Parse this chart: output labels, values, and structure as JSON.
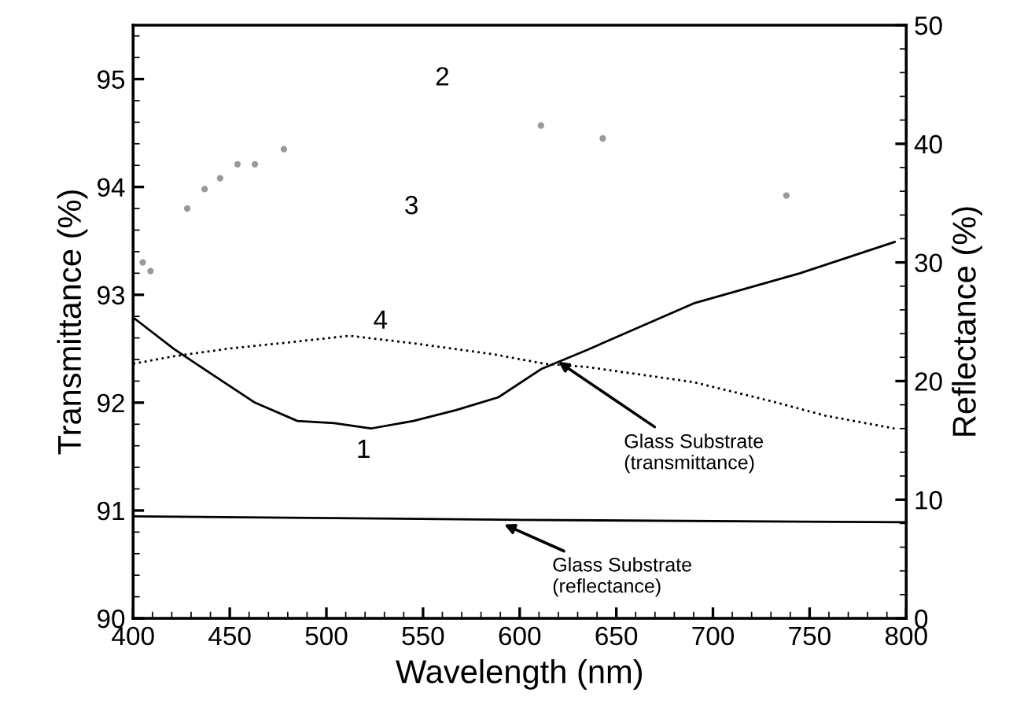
{
  "chart_data": {
    "type": "line",
    "xlabel": "Wavelength (nm)",
    "ylabel": "Transmittance (%)",
    "y2label": "Reflectance (%)",
    "xlim": [
      400,
      800
    ],
    "xticks": [
      400,
      450,
      500,
      550,
      600,
      650,
      700,
      750,
      800
    ],
    "ylim": [
      90,
      95.5
    ],
    "yticks": [
      90,
      91,
      92,
      93,
      94,
      95
    ],
    "y2lim": [
      0,
      50
    ],
    "y2ticks": [
      0,
      10,
      20,
      30,
      40,
      50
    ],
    "grid": false,
    "legend": false,
    "series": [
      {
        "name": "1",
        "color": "#000000",
        "line_style": "solid",
        "x": [
          400,
          421,
          441,
          463,
          485,
          504,
          523,
          545,
          567,
          589,
          611,
          635,
          690,
          745,
          794
        ],
        "values": [
          92.79,
          92.5,
          92.26,
          92.0,
          91.83,
          91.81,
          91.76,
          91.83,
          91.93,
          92.05,
          92.31,
          92.49,
          92.92,
          93.2,
          93.49
        ]
      },
      {
        "type": "scatter",
        "color": "#999999",
        "marker": "circle",
        "x": [
          428,
          437,
          445,
          454,
          463,
          478,
          611,
          643
        ],
        "values": [
          93.8,
          93.98,
          94.08,
          94.21,
          94.21,
          94.35,
          94.57,
          94.45
        ]
      },
      {
        "type": "scatter",
        "color": "#999999",
        "marker": "circle",
        "x": [
          405,
          409,
          738
        ],
        "values": [
          93.3,
          93.22,
          93.92
        ]
      },
      {
        "name": "4",
        "type": "line",
        "color": "#000000",
        "line_style": "dotted",
        "x": [
          400,
          421,
          449,
          476,
          512,
          545,
          586,
          613,
          635,
          690,
          731,
          758,
          794
        ],
        "values": [
          92.36,
          92.43,
          92.5,
          92.55,
          92.62,
          92.55,
          92.45,
          92.36,
          92.33,
          92.19,
          92.01,
          91.88,
          91.76
        ]
      },
      {
        "type": "line",
        "color": "#000000",
        "line_style": "solid",
        "axis": "y2",
        "x": [
          400,
          600,
          800
        ],
        "values": [
          8.6,
          8.3,
          8.1
        ]
      }
    ],
    "annotations": [
      "2",
      "3",
      {
        "text": "Glass Substrate\n(transmittance)",
        "x": 620,
        "y": 92.38
      },
      {
        "text": "Glass Substrate\n(reflectance)",
        "x": 592,
        "y": 90.87
      }
    ]
  }
}
